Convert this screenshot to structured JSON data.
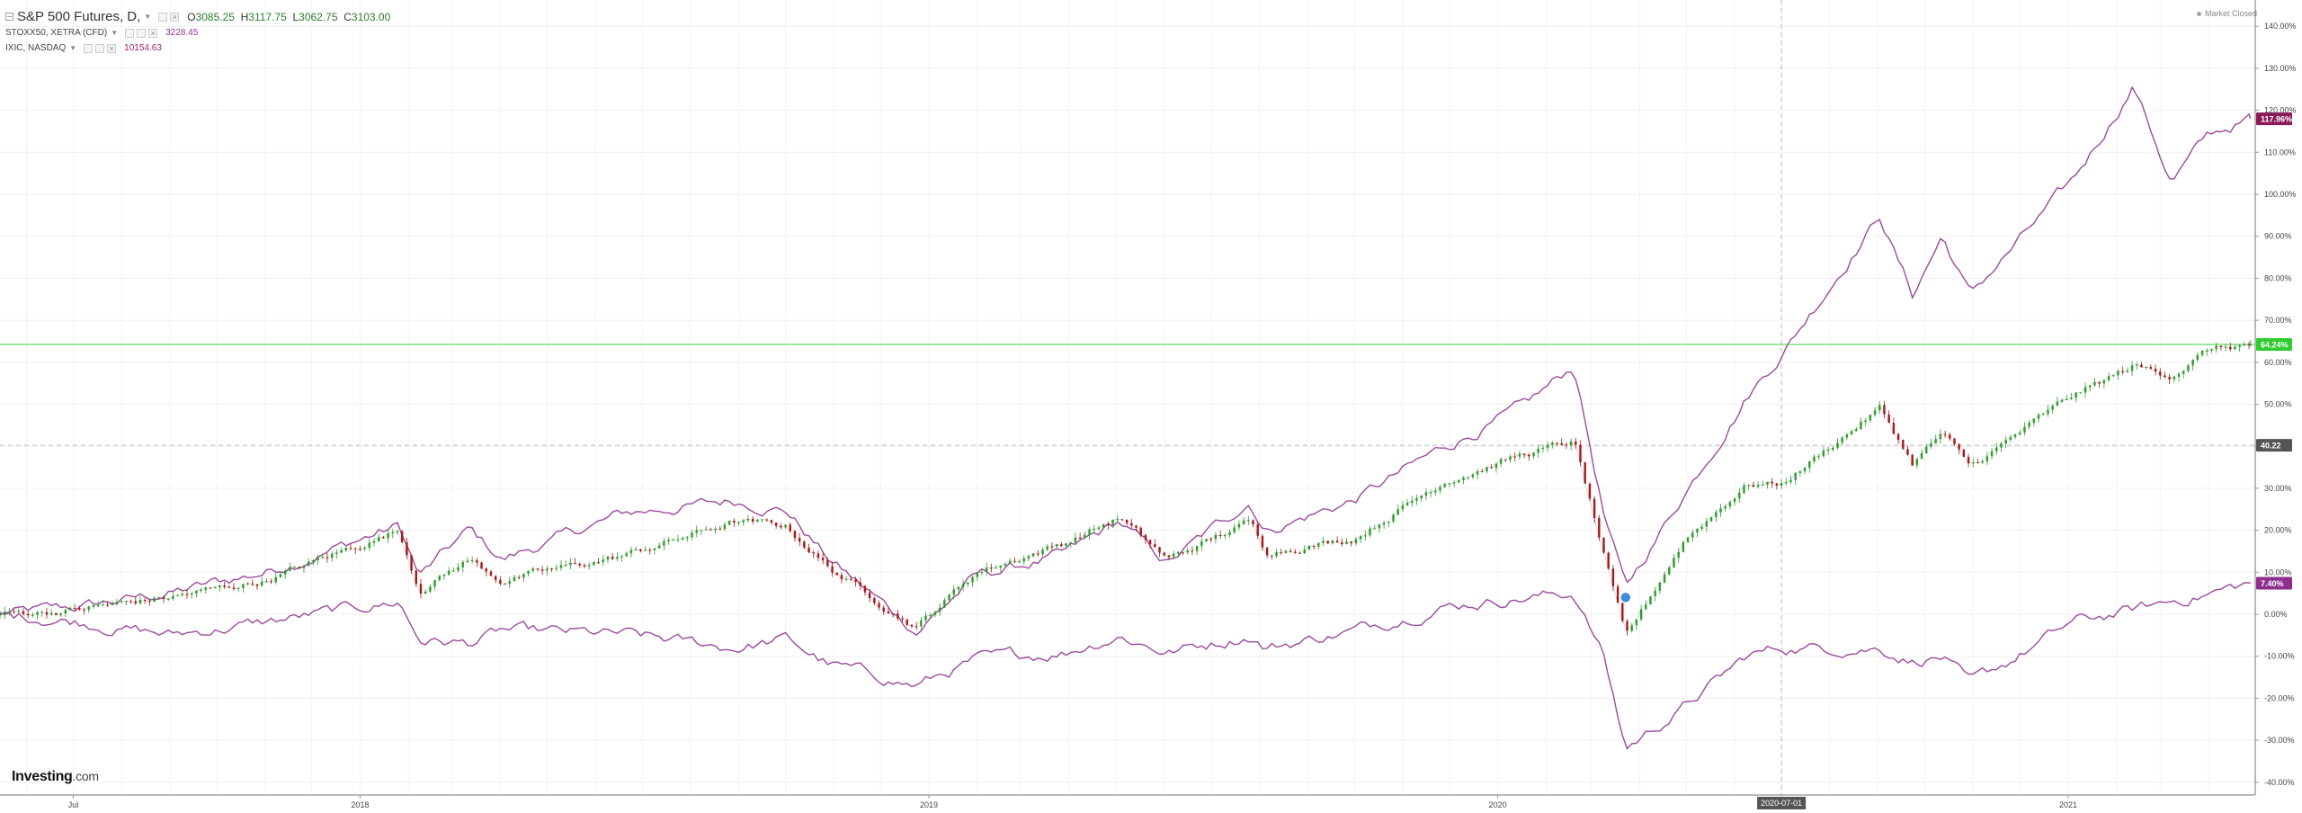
{
  "header": {
    "main_symbol": "S&P 500 Futures, D,",
    "ohlc": {
      "o_label": "O",
      "o": "3085.25",
      "h_label": "H",
      "h": "3117.75",
      "l_label": "L",
      "l": "3062.75",
      "c_label": "C",
      "c": "3103.00"
    },
    "compare_1": {
      "symbol": "STOXX50, XETRA (CFD)",
      "value": "3228.45"
    },
    "compare_2": {
      "symbol": "IXIC, NASDAQ",
      "value": "10154.63"
    },
    "market_status": "Market Closed",
    "logo_main": "Investing",
    "logo_suffix": ".com"
  },
  "colors": {
    "compare_line": "#9c4a9c",
    "candle_up": "#2e9e2e",
    "candle_down": "#a81818",
    "hline": "#7ee07e",
    "badge_nasdaq": "#8b1a5a",
    "badge_stoxx": "#8e2f8e",
    "badge_current": "#2ecc2e",
    "badge_crosshair": "#555555"
  },
  "axis": {
    "y_ticks": [
      "140.00%",
      "130.00%",
      "120.00%",
      "110.00%",
      "100.00%",
      "90.00%",
      "80.00%",
      "70.00%",
      "60.00%",
      "50.00%",
      "40.00%",
      "30.00%",
      "20.00%",
      "10.00%",
      "0.00%",
      "-10.00%",
      "-20.00%",
      "-30.00%",
      "-40.00%"
    ],
    "x_ticks": [
      "Jul",
      "2018",
      "2019",
      "2020",
      "2021"
    ],
    "crosshair_x_label": "2020-07-01",
    "badges": {
      "nasdaq": "117.96%",
      "sp500": "64.24%",
      "crosshair_y": "40.22",
      "stoxx": "7.40%"
    }
  },
  "chart_data": {
    "type": "line",
    "yunit": "% change",
    "ylim": [
      -40,
      140
    ],
    "xlim": [
      "2017-05-15",
      "2021-05-01"
    ],
    "grid": true,
    "horizontal_line": 64.24,
    "crosshair": {
      "x": "2020-07-01",
      "y": 40.22
    },
    "series": [
      {
        "name": "IXIC, NASDAQ",
        "x": [
          "2017-05-15",
          "2017-07-01",
          "2017-09-01",
          "2017-11-01",
          "2018-01-26",
          "2018-02-08",
          "2018-03-12",
          "2018-04-02",
          "2018-06-20",
          "2018-08-29",
          "2018-10-01",
          "2018-10-29",
          "2018-12-24",
          "2019-01-31",
          "2019-03-29",
          "2019-05-03",
          "2019-06-03",
          "2019-07-26",
          "2019-08-05",
          "2019-09-30",
          "2019-11-29",
          "2020-01-17",
          "2020-02-19",
          "2020-03-09",
          "2020-03-23",
          "2020-04-30",
          "2020-06-09",
          "2020-07-01",
          "2020-09-02",
          "2020-09-23",
          "2020-10-12",
          "2020-10-30",
          "2021-01-04",
          "2021-02-12",
          "2021-03-08",
          "2021-04-01",
          "2021-04-28"
        ],
        "values": [
          0,
          1.5,
          5,
          10,
          21,
          9,
          20,
          13,
          24,
          27,
          25,
          13,
          -4,
          9,
          14,
          22,
          12,
          27,
          20,
          27,
          40,
          49,
          59,
          24,
          6,
          29,
          52,
          62,
          95,
          76,
          90,
          76,
          103,
          126,
          103,
          114,
          118
        ]
      },
      {
        "name": "S&P 500 Futures, D,",
        "x": [
          "2017-05-15",
          "2017-07-01",
          "2017-09-01",
          "2017-11-01",
          "2018-01-26",
          "2018-02-08",
          "2018-03-12",
          "2018-04-02",
          "2018-06-20",
          "2018-08-29",
          "2018-10-01",
          "2018-10-29",
          "2018-12-24",
          "2019-01-31",
          "2019-03-29",
          "2019-05-03",
          "2019-06-03",
          "2019-07-26",
          "2019-08-05",
          "2019-09-30",
          "2019-11-29",
          "2020-01-17",
          "2020-02-19",
          "2020-03-09",
          "2020-03-23",
          "2020-04-30",
          "2020-06-09",
          "2020-07-01",
          "2020-09-02",
          "2020-09-23",
          "2020-10-12",
          "2020-10-30",
          "2021-01-04",
          "2021-02-12",
          "2021-03-08",
          "2021-04-01",
          "2021-04-28"
        ],
        "values": [
          0,
          1,
          4,
          8,
          20,
          6,
          13,
          8,
          14,
          22,
          21,
          11,
          -3,
          10,
          17,
          23,
          13,
          22,
          15,
          18,
          32,
          38,
          41,
          14,
          -6,
          18,
          31,
          31,
          49,
          36,
          43,
          35,
          52,
          59,
          57,
          63,
          64.2
        ]
      },
      {
        "name": "STOXX50, XETRA (CFD)",
        "x": [
          "2017-05-15",
          "2017-07-01",
          "2017-09-01",
          "2017-11-01",
          "2018-01-26",
          "2018-02-08",
          "2018-03-12",
          "2018-04-02",
          "2018-06-20",
          "2018-08-29",
          "2018-10-01",
          "2018-10-29",
          "2018-12-24",
          "2019-01-31",
          "2019-03-29",
          "2019-05-03",
          "2019-06-03",
          "2019-07-26",
          "2019-08-05",
          "2019-09-30",
          "2019-11-29",
          "2020-01-17",
          "2020-02-19",
          "2020-03-09",
          "2020-03-23",
          "2020-04-30",
          "2020-06-09",
          "2020-07-01",
          "2020-09-02",
          "2020-09-23",
          "2020-10-12",
          "2020-10-30",
          "2021-01-04",
          "2021-02-12",
          "2021-03-08",
          "2021-04-01",
          "2021-04-28"
        ],
        "values": [
          0,
          -1.5,
          -5,
          -2,
          3,
          -6,
          -7,
          -4,
          -5,
          -8,
          -6,
          -12,
          -17,
          -11,
          -9,
          -5,
          -9,
          -5,
          -8,
          -4,
          2,
          4,
          5,
          -10,
          -32,
          -22,
          -10,
          -8,
          -8,
          -11,
          -10,
          -17,
          -2,
          1,
          3,
          5,
          7.4
        ]
      }
    ]
  }
}
